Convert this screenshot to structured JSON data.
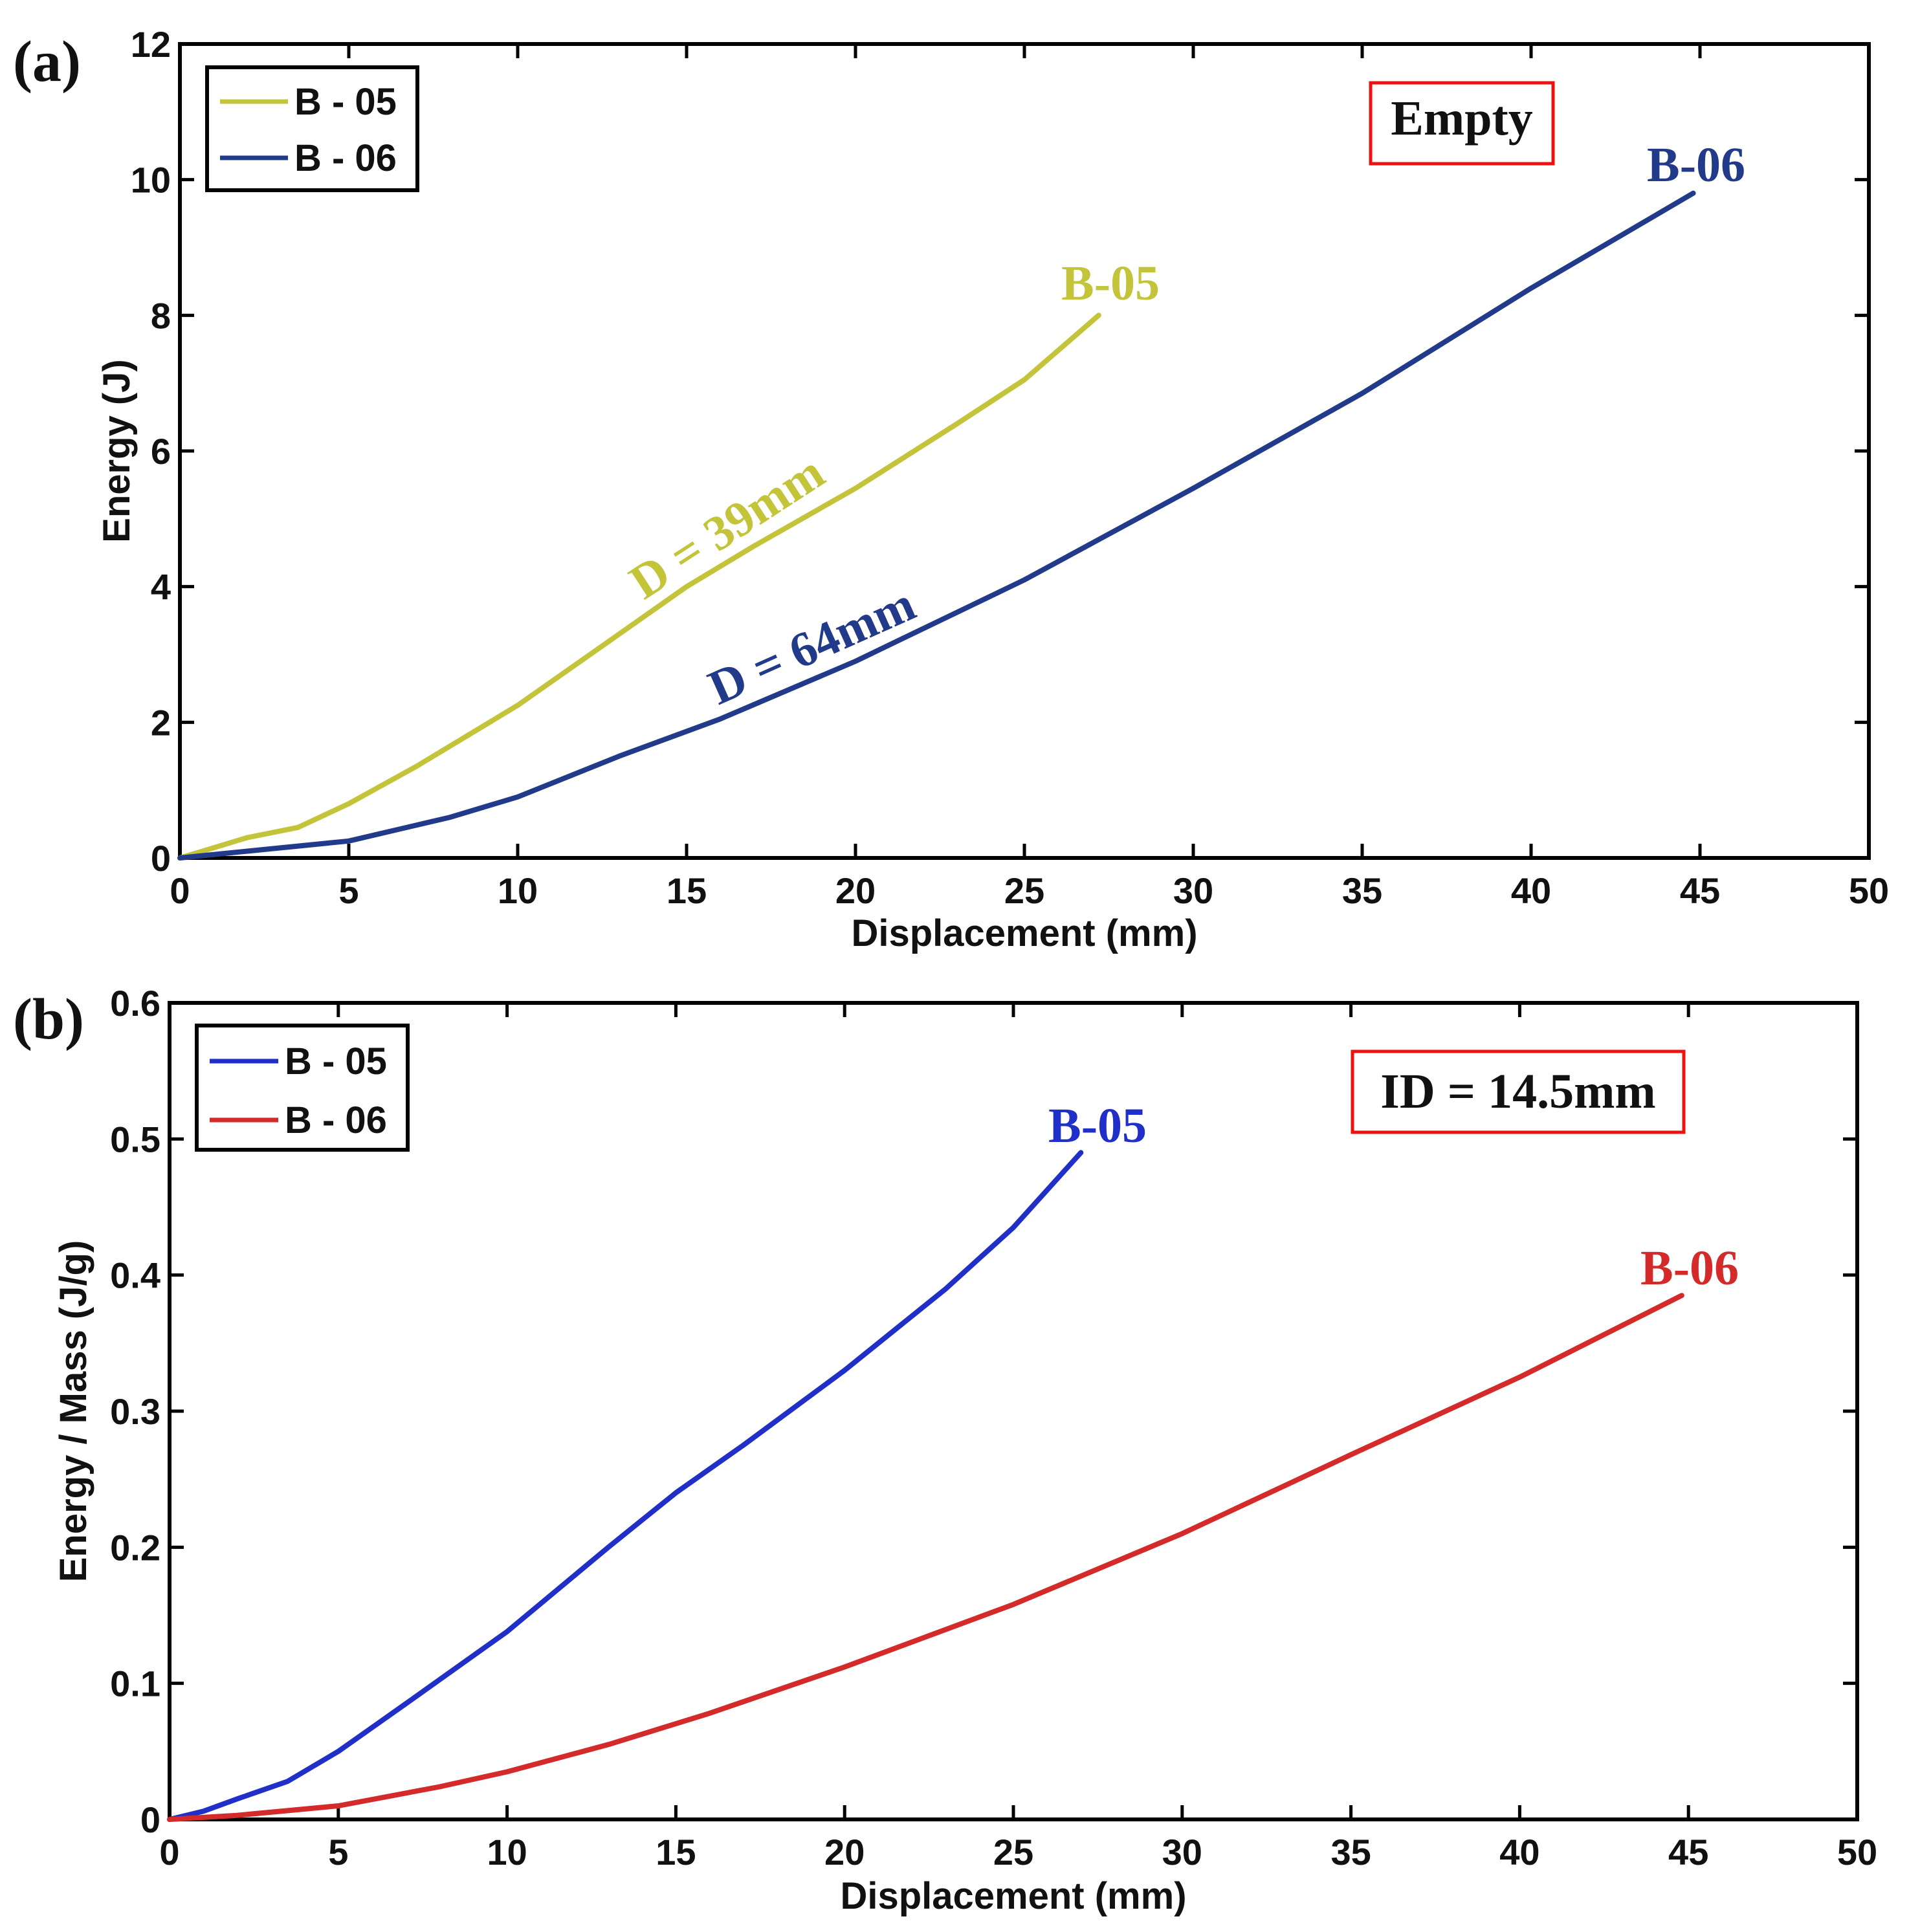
{
  "chart_data": [
    {
      "panel_label": "(a)",
      "type": "line",
      "xlabel": "Displacement (mm)",
      "ylabel": "Energy (J)",
      "xlim": [
        0,
        50
      ],
      "ylim": [
        0,
        12
      ],
      "xticks": [
        "0",
        "5",
        "10",
        "15",
        "20",
        "25",
        "30",
        "35",
        "40",
        "45",
        "50"
      ],
      "yticks": [
        "0",
        "2",
        "4",
        "6",
        "8",
        "10",
        "12"
      ],
      "grid": false,
      "legend_position": "top-left",
      "annotation_box": "Empty",
      "series": [
        {
          "name": "B - 05",
          "color": "#c4c43a",
          "end_label": "B-05",
          "curve_label": "D = 39mm",
          "x": [
            0,
            1,
            2,
            3.5,
            5,
            7,
            10,
            13,
            15,
            17,
            20,
            23,
            25,
            27.2
          ],
          "y": [
            0,
            0.15,
            0.3,
            0.45,
            0.8,
            1.35,
            2.25,
            3.3,
            4.0,
            4.6,
            5.45,
            6.4,
            7.05,
            8.0
          ]
        },
        {
          "name": "B - 06",
          "color": "#223a8a",
          "end_label": "B-06",
          "curve_label": "D = 64mm",
          "x": [
            0,
            2,
            5,
            8,
            10,
            13,
            16,
            20,
            25,
            30,
            35,
            40,
            44.8
          ],
          "y": [
            0,
            0.1,
            0.25,
            0.6,
            0.9,
            1.5,
            2.05,
            2.9,
            4.1,
            5.45,
            6.85,
            8.4,
            9.8
          ]
        }
      ]
    },
    {
      "panel_label": "(b)",
      "type": "line",
      "xlabel": "Displacement (mm)",
      "ylabel": "Energy / Mass (J/g)",
      "xlim": [
        0,
        50
      ],
      "ylim": [
        0,
        0.6
      ],
      "xticks": [
        "0",
        "5",
        "10",
        "15",
        "20",
        "25",
        "30",
        "35",
        "40",
        "45",
        "50"
      ],
      "yticks": [
        "0",
        "0.1",
        "0.2",
        "0.3",
        "0.4",
        "0.5",
        "0.6"
      ],
      "grid": false,
      "legend_position": "top-left",
      "annotation_box": "ID = 14.5mm",
      "series": [
        {
          "name": "B - 05",
          "color": "#1f2fc8",
          "end_label": "B-05",
          "x": [
            0,
            1,
            2,
            3.5,
            5,
            7,
            10,
            13,
            15,
            17,
            20,
            23,
            25,
            27
          ],
          "y": [
            0,
            0.006,
            0.015,
            0.028,
            0.05,
            0.085,
            0.138,
            0.2,
            0.24,
            0.275,
            0.33,
            0.39,
            0.435,
            0.49
          ]
        },
        {
          "name": "B - 06",
          "color": "#d42a2a",
          "end_label": "B-06",
          "x": [
            0,
            2,
            5,
            8,
            10,
            13,
            16,
            20,
            25,
            30,
            35,
            40,
            44.8
          ],
          "y": [
            0,
            0.003,
            0.01,
            0.024,
            0.035,
            0.055,
            0.078,
            0.112,
            0.158,
            0.21,
            0.268,
            0.325,
            0.385
          ]
        }
      ]
    }
  ]
}
